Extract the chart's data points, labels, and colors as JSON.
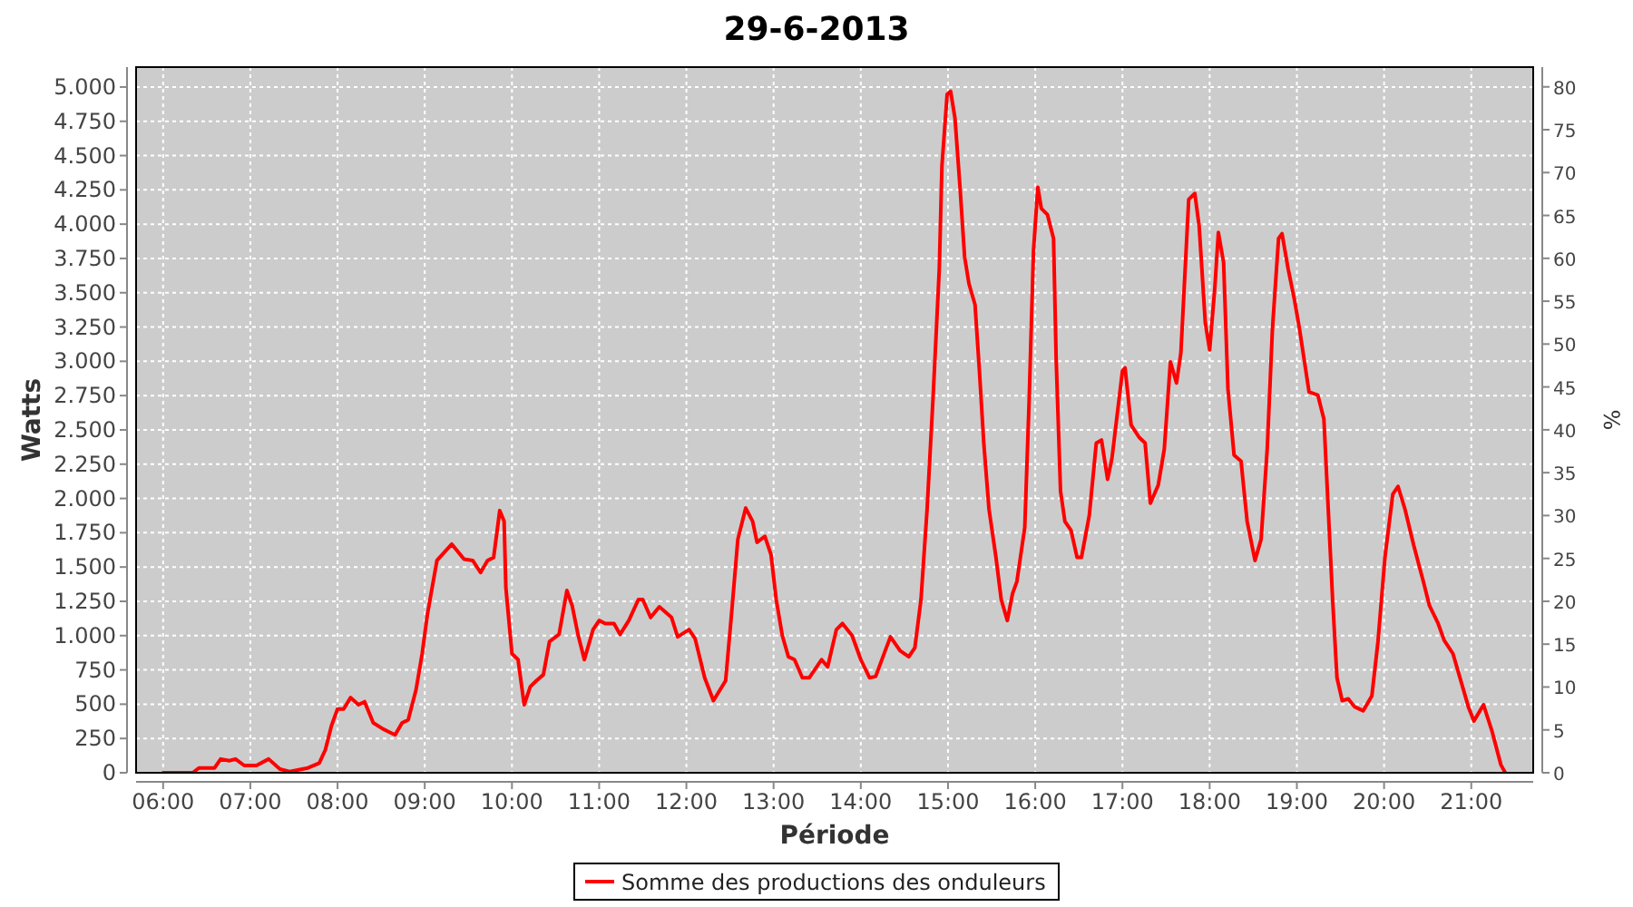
{
  "chart_data": {
    "type": "line",
    "title": "29-6-2013",
    "xlabel": "Période",
    "ylabel": "Watts",
    "y2label": "%",
    "xlim": [
      5.69,
      21.71
    ],
    "xticks": [
      {
        "value": 6,
        "label": "06:00"
      },
      {
        "value": 7,
        "label": "07:00"
      },
      {
        "value": 8,
        "label": "08:00"
      },
      {
        "value": 9,
        "label": "09:00"
      },
      {
        "value": 10,
        "label": "10:00"
      },
      {
        "value": 11,
        "label": "11:00"
      },
      {
        "value": 12,
        "label": "12:00"
      },
      {
        "value": 13,
        "label": "13:00"
      },
      {
        "value": 14,
        "label": "14:00"
      },
      {
        "value": 15,
        "label": "15:00"
      },
      {
        "value": 16,
        "label": "16:00"
      },
      {
        "value": 17,
        "label": "17:00"
      },
      {
        "value": 18,
        "label": "18:00"
      },
      {
        "value": 19,
        "label": "19:00"
      },
      {
        "value": 20,
        "label": "20:00"
      },
      {
        "value": 21,
        "label": "21:00"
      }
    ],
    "ylim": [
      0,
      5145
    ],
    "yticks": [
      0,
      250,
      500,
      750,
      {
        "value": 1000,
        "label": "1.000"
      },
      {
        "value": 1250,
        "label": "1.250"
      },
      {
        "value": 1500,
        "label": "1.500"
      },
      {
        "value": 1750,
        "label": "1.750"
      },
      {
        "value": 2000,
        "label": "2.000"
      },
      {
        "value": 2250,
        "label": "2.250"
      },
      {
        "value": 2500,
        "label": "2.500"
      },
      {
        "value": 2750,
        "label": "2.750"
      },
      {
        "value": 3000,
        "label": "3.000"
      },
      {
        "value": 3250,
        "label": "3.250"
      },
      {
        "value": 3500,
        "label": "3.500"
      },
      {
        "value": 3750,
        "label": "3.750"
      },
      {
        "value": 4000,
        "label": "4.000"
      },
      {
        "value": 4250,
        "label": "4.250"
      },
      {
        "value": 4500,
        "label": "4.500"
      },
      {
        "value": 4750,
        "label": "4.750"
      },
      {
        "value": 5000,
        "label": "5.000"
      }
    ],
    "y2lim": [
      0,
      82.3
    ],
    "y2ticks": [
      0,
      5,
      10,
      15,
      20,
      25,
      30,
      35,
      40,
      45,
      50,
      55,
      60,
      65,
      70,
      75,
      80
    ],
    "grid": true,
    "legend": "bottom",
    "marker": "none",
    "line_style": "solid",
    "series": [
      {
        "name": "Somme des productions des onduleurs",
        "color": "#ff0000",
        "x": [
          6.0,
          6.34,
          6.41,
          6.59,
          6.66,
          6.76,
          6.83,
          6.93,
          7.07,
          7.21,
          7.34,
          7.45,
          7.66,
          7.79,
          7.86,
          7.93,
          8.0,
          8.07,
          8.15,
          8.24,
          8.31,
          8.41,
          8.52,
          8.59,
          8.66,
          8.74,
          8.81,
          8.9,
          8.97,
          9.03,
          9.14,
          9.31,
          9.45,
          9.55,
          9.64,
          9.72,
          9.79,
          9.86,
          9.91,
          9.93,
          10.0,
          10.07,
          10.14,
          10.21,
          10.28,
          10.36,
          10.43,
          10.54,
          10.63,
          10.69,
          10.76,
          10.83,
          10.93,
          11.0,
          11.07,
          11.17,
          11.24,
          11.34,
          11.45,
          11.5,
          11.59,
          11.69,
          11.83,
          11.9,
          12.03,
          12.1,
          12.21,
          12.31,
          12.45,
          12.52,
          12.59,
          12.68,
          12.76,
          12.81,
          12.9,
          12.97,
          13.03,
          13.1,
          13.17,
          13.24,
          13.33,
          13.41,
          13.55,
          13.62,
          13.72,
          13.79,
          13.9,
          14.0,
          14.1,
          14.17,
          14.28,
          14.34,
          14.45,
          14.55,
          14.62,
          14.69,
          14.76,
          14.83,
          14.9,
          14.93,
          14.99,
          15.03,
          15.08,
          15.14,
          15.19,
          15.24,
          15.31,
          15.36,
          15.41,
          15.47,
          15.55,
          15.61,
          15.68,
          15.74,
          15.79,
          15.88,
          15.93,
          15.98,
          16.03,
          16.07,
          16.14,
          16.21,
          16.24,
          16.29,
          16.34,
          16.41,
          16.48,
          16.53,
          16.62,
          16.7,
          16.76,
          16.83,
          16.88,
          17.0,
          17.03,
          17.1,
          17.19,
          17.26,
          17.32,
          17.41,
          17.48,
          17.55,
          17.62,
          17.67,
          17.76,
          17.83,
          17.88,
          17.95,
          18.0,
          18.06,
          18.1,
          18.16,
          18.21,
          18.28,
          18.36,
          18.43,
          18.52,
          18.59,
          18.66,
          18.72,
          18.79,
          18.83,
          18.9,
          18.97,
          19.03,
          19.14,
          19.24,
          19.31,
          19.36,
          19.41,
          19.46,
          19.52,
          19.59,
          19.66,
          19.76,
          19.86,
          19.93,
          20.01,
          20.1,
          20.16,
          20.24,
          20.34,
          20.45,
          20.52,
          20.62,
          20.69,
          20.79,
          20.86,
          20.97,
          21.03,
          21.14,
          21.24,
          21.34,
          21.39
        ],
        "values": [
          0,
          0,
          35,
          35,
          100,
          88,
          100,
          53,
          53,
          100,
          26,
          9,
          35,
          70,
          167,
          342,
          465,
          465,
          548,
          496,
          518,
          364,
          320,
          298,
          276,
          364,
          386,
          605,
          868,
          1153,
          1548,
          1667,
          1557,
          1548,
          1460,
          1548,
          1570,
          1912,
          1833,
          1351,
          868,
          825,
          496,
          627,
          671,
          715,
          956,
          1009,
          1329,
          1219,
          1000,
          825,
          1044,
          1110,
          1088,
          1088,
          1009,
          1110,
          1263,
          1263,
          1132,
          1210,
          1132,
          991,
          1044,
          978,
          693,
          526,
          671,
          1175,
          1702,
          1930,
          1833,
          1680,
          1724,
          1592,
          1263,
          1000,
          846,
          825,
          693,
          693,
          825,
          772,
          1044,
          1088,
          1000,
          825,
          693,
          702,
          890,
          991,
          890,
          846,
          912,
          1263,
          1921,
          2754,
          3675,
          4421,
          4947,
          4969,
          4772,
          4246,
          3763,
          3566,
          3412,
          2930,
          2404,
          1921,
          1570,
          1263,
          1110,
          1307,
          1395,
          1789,
          2711,
          3807,
          4268,
          4114,
          4070,
          3895,
          3018,
          2053,
          1833,
          1768,
          1570,
          1570,
          1877,
          2404,
          2426,
          2140,
          2294,
          2930,
          2952,
          2535,
          2447,
          2404,
          1965,
          2096,
          2360,
          2996,
          2842,
          3061,
          4180,
          4224,
          3983,
          3281,
          3083,
          3544,
          3939,
          3720,
          2798,
          2316,
          2272,
          1833,
          1548,
          1702,
          2360,
          3237,
          3895,
          3930,
          3675,
          3456,
          3237,
          2776,
          2754,
          2579,
          1921,
          1263,
          693,
          526,
          539,
          482,
          452,
          561,
          956,
          1570,
          2031,
          2088,
          1921,
          1658,
          1395,
          1219,
          1088,
          965,
          868,
          715,
          474,
          377,
          496,
          298,
          57,
          0
        ]
      }
    ]
  }
}
